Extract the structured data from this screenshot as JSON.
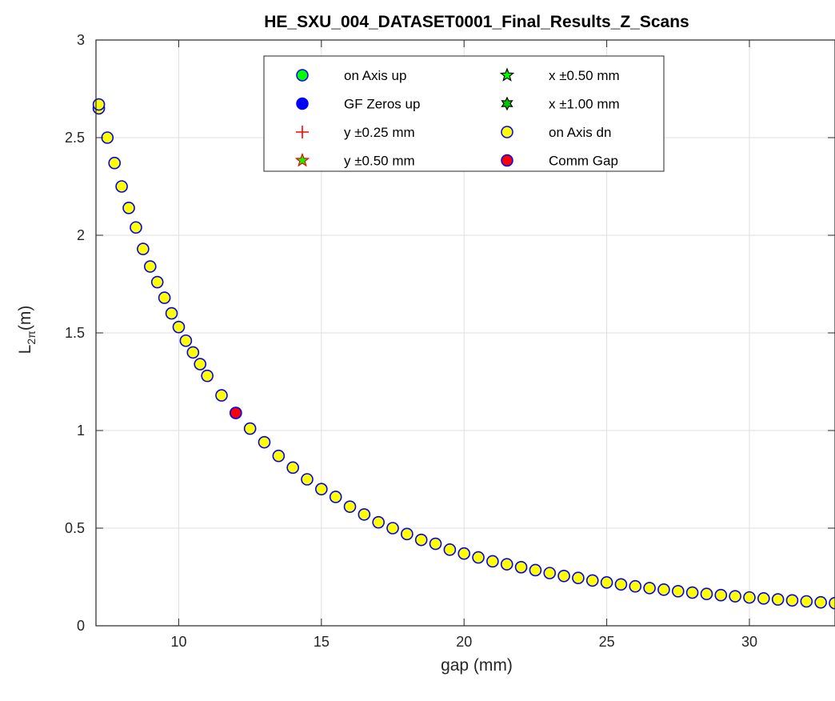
{
  "chart_data": {
    "type": "scatter",
    "title": "HE_SXU_004_DATASET0001_Final_Results_Z_Scans",
    "xlabel": "gap (mm)",
    "ylabel_main": "L",
    "ylabel_sub": "2π",
    "ylabel_suffix": "(m)",
    "xlim": [
      7.1,
      33
    ],
    "ylim": [
      0,
      3
    ],
    "xticks": [
      10,
      15,
      20,
      25,
      30
    ],
    "yticks": [
      0,
      0.5,
      1,
      1.5,
      2,
      2.5,
      3
    ],
    "xtick_labels": [
      "10",
      "15",
      "20",
      "25",
      "30"
    ],
    "ytick_labels": [
      "0",
      "0.5",
      "1",
      "1.5",
      "2",
      "2.5",
      "3"
    ],
    "grid": true,
    "legend_position": "top-center",
    "colors": {
      "yellow": "#ffff00",
      "blue": "#0000ff",
      "red": "#ff0000",
      "green": "#00ff00",
      "dark_green": "#00c800"
    },
    "legend": [
      {
        "label": "on Axis up",
        "marker": "circle",
        "fill": "#00ff00",
        "stroke": "#0000ff"
      },
      {
        "label": "x ±0.50 mm",
        "marker": "pentagram",
        "fill": "#00ff00",
        "stroke": "#000000"
      },
      {
        "label": "GF Zeros up",
        "marker": "circle",
        "fill": "#0000ff",
        "stroke": "#0000ff"
      },
      {
        "label": "x ±1.00 mm",
        "marker": "hexagram",
        "fill": "#00c800",
        "stroke": "#000000"
      },
      {
        "label": "y ±0.25 mm",
        "marker": "plus",
        "fill": "none",
        "stroke": "#ff0000"
      },
      {
        "label": "on Axis dn",
        "marker": "circle",
        "fill": "#ffff00",
        "stroke": "#0000ff"
      },
      {
        "label": "y ±0.50 mm",
        "marker": "pentagram",
        "fill": "#00ff00",
        "stroke": "#ff0000"
      },
      {
        "label": "Comm Gap",
        "marker": "circle",
        "fill": "#ff0000",
        "stroke": "#0000ff"
      }
    ],
    "series": [
      {
        "name": "on Axis dn",
        "x": [
          7.2,
          7.2,
          7.5,
          7.75,
          8.0,
          8.25,
          8.5,
          8.75,
          9.0,
          9.25,
          9.5,
          9.75,
          10.0,
          10.25,
          10.5,
          10.75,
          11.0,
          11.5,
          12.0,
          12.5,
          13.0,
          13.5,
          14.0,
          14.5,
          15.0,
          15.5,
          16.0,
          16.5,
          17.0,
          17.5,
          18.0,
          18.5,
          19.0,
          19.5,
          20.0,
          20.5,
          21.0,
          21.5,
          22.0,
          22.5,
          23.0,
          23.5,
          24.0,
          24.5,
          25.0,
          25.5,
          26.0,
          26.5,
          27.0,
          27.5,
          28.0,
          28.5,
          29.0,
          29.5,
          30.0,
          30.5,
          31.0,
          31.5,
          32.0,
          32.5,
          33.0
        ],
        "y": [
          2.65,
          2.67,
          2.5,
          2.37,
          2.25,
          2.14,
          2.04,
          1.93,
          1.84,
          1.76,
          1.68,
          1.6,
          1.53,
          1.46,
          1.4,
          1.34,
          1.28,
          1.18,
          1.09,
          1.01,
          0.94,
          0.87,
          0.81,
          0.75,
          0.7,
          0.66,
          0.61,
          0.57,
          0.53,
          0.5,
          0.47,
          0.44,
          0.42,
          0.39,
          0.37,
          0.35,
          0.33,
          0.315,
          0.3,
          0.285,
          0.27,
          0.255,
          0.245,
          0.232,
          0.222,
          0.212,
          0.202,
          0.193,
          0.185,
          0.177,
          0.17,
          0.163,
          0.157,
          0.151,
          0.145,
          0.14,
          0.135,
          0.13,
          0.125,
          0.12,
          0.116
        ]
      },
      {
        "name": "Comm Gap",
        "x": [
          12.0
        ],
        "y": [
          1.09
        ]
      }
    ]
  }
}
